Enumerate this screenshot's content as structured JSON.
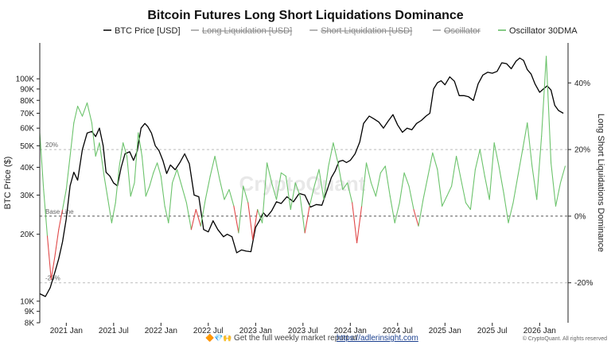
{
  "chart_data": {
    "type": "line",
    "title": "Bitcoin Futures Long Short Liquidations Dominance",
    "legend": [
      {
        "name": "BTC Price [USD]",
        "color": "#000000",
        "enabled": true
      },
      {
        "name": "Long Liquidation [USD]",
        "color": "#9a9a9a",
        "enabled": false
      },
      {
        "name": "Short Liquidation [USD]",
        "color": "#9a9a9a",
        "enabled": false
      },
      {
        "name": "Oscillator",
        "color": "#9a9a9a",
        "enabled": false
      },
      {
        "name": "Oscillator 30DMA",
        "color": "#5cb85c",
        "enabled": true
      }
    ],
    "ylabel_left": "BTC Price ($)",
    "ylabel_right": "Long Short Liquidations Dominance",
    "y_left_scale": "log",
    "y_left_range": [
      8000,
      145000
    ],
    "y_left_ticks": [
      {
        "value": 8000,
        "label": "8K"
      },
      {
        "value": 9000,
        "label": "9K"
      },
      {
        "value": 10000,
        "label": "10K"
      },
      {
        "value": 20000,
        "label": "20K"
      },
      {
        "value": 30000,
        "label": "30K"
      },
      {
        "value": 40000,
        "label": "40K"
      },
      {
        "value": 50000,
        "label": "50K"
      },
      {
        "value": 60000,
        "label": "60K"
      },
      {
        "value": 70000,
        "label": "70K"
      },
      {
        "value": 80000,
        "label": "80K"
      },
      {
        "value": 90000,
        "label": "90K"
      },
      {
        "value": 100000,
        "label": "100K"
      }
    ],
    "y_right_range": [
      -0.32,
      0.52
    ],
    "y_right_ticks": [
      {
        "value": 0.4,
        "label": "40%"
      },
      {
        "value": 0.2,
        "label": "20%"
      },
      {
        "value": 0.0,
        "label": "0%"
      },
      {
        "value": -0.2,
        "label": "-20%"
      }
    ],
    "x_range": [
      2020.72,
      2026.3
    ],
    "x_ticks": [
      {
        "value": 2021.0,
        "label": "2021 Jan"
      },
      {
        "value": 2021.5,
        "label": "2021 Jul"
      },
      {
        "value": 2022.0,
        "label": "2022 Jan"
      },
      {
        "value": 2022.5,
        "label": "2022 Jul"
      },
      {
        "value": 2023.0,
        "label": "2023 Jan"
      },
      {
        "value": 2023.5,
        "label": "2023 Jul"
      },
      {
        "value": 2024.0,
        "label": "2024 Jan"
      },
      {
        "value": 2024.5,
        "label": "2024 Jul"
      },
      {
        "value": 2025.0,
        "label": "2025 Jan"
      },
      {
        "value": 2025.5,
        "label": "2025 Jul"
      },
      {
        "value": 2026.0,
        "label": "2026 Jan"
      }
    ],
    "reference_lines": [
      {
        "value": 0.2,
        "label": "20%",
        "style": "dashed"
      },
      {
        "value": 0.0,
        "label": "Base Line",
        "style": "dashed"
      },
      {
        "value": -0.2,
        "label": "-20%",
        "style": "dashed"
      }
    ],
    "series": [
      {
        "name": "BTC Price [USD]",
        "axis": "left",
        "x": [
          2020.72,
          2020.78,
          2020.83,
          2020.88,
          2020.92,
          2020.96,
          2021.0,
          2021.04,
          2021.08,
          2021.12,
          2021.17,
          2021.22,
          2021.27,
          2021.31,
          2021.35,
          2021.39,
          2021.42,
          2021.46,
          2021.5,
          2021.54,
          2021.58,
          2021.62,
          2021.67,
          2021.71,
          2021.75,
          2021.79,
          2021.83,
          2021.86,
          2021.9,
          2021.94,
          2021.98,
          2022.02,
          2022.06,
          2022.1,
          2022.15,
          2022.2,
          2022.25,
          2022.3,
          2022.35,
          2022.4,
          2022.45,
          2022.5,
          2022.55,
          2022.6,
          2022.66,
          2022.7,
          2022.75,
          2022.8,
          2022.85,
          2022.9,
          2022.95,
          2023.0,
          2023.04,
          2023.08,
          2023.12,
          2023.17,
          2023.22,
          2023.27,
          2023.33,
          2023.4,
          2023.46,
          2023.52,
          2023.58,
          2023.64,
          2023.7,
          2023.76,
          2023.8,
          2023.84,
          2023.88,
          2023.92,
          2023.96,
          2024.0,
          2024.05,
          2024.1,
          2024.14,
          2024.2,
          2024.25,
          2024.3,
          2024.35,
          2024.4,
          2024.45,
          2024.5,
          2024.55,
          2024.6,
          2024.65,
          2024.7,
          2024.75,
          2024.8,
          2024.84,
          2024.88,
          2024.92,
          2024.96,
          2025.0,
          2025.05,
          2025.1,
          2025.15,
          2025.2,
          2025.25,
          2025.3,
          2025.35,
          2025.4,
          2025.45,
          2025.5,
          2025.55,
          2025.6,
          2025.65,
          2025.7,
          2025.75,
          2025.79,
          2025.83,
          2025.87,
          2025.91,
          2025.95,
          2026.0,
          2026.04,
          2026.08,
          2026.12,
          2026.16,
          2026.2,
          2026.25
        ],
        "y": [
          10800,
          10500,
          11500,
          13500,
          15500,
          18500,
          23500,
          33000,
          38000,
          35000,
          48000,
          57000,
          58000,
          55000,
          60000,
          50000,
          38000,
          36500,
          34000,
          33000,
          40000,
          46000,
          47000,
          43000,
          47500,
          60000,
          63000,
          61000,
          57000,
          50000,
          47500,
          43000,
          37500,
          41000,
          39000,
          42000,
          46000,
          41500,
          30000,
          29500,
          21000,
          20500,
          23000,
          21000,
          19500,
          20000,
          19500,
          16500,
          17000,
          16800,
          16700,
          21500,
          23000,
          25000,
          24000,
          25500,
          28000,
          27500,
          29500,
          28000,
          30500,
          30000,
          26500,
          27200,
          27000,
          32000,
          36000,
          38500,
          42500,
          43000,
          42000,
          43000,
          46000,
          52000,
          63000,
          68000,
          66000,
          64000,
          60000,
          64500,
          69000,
          62000,
          57500,
          60000,
          59000,
          63000,
          65000,
          68000,
          70000,
          90000,
          96000,
          98000,
          94000,
          102000,
          97500,
          84000,
          84000,
          83000,
          80000,
          95000,
          104000,
          107000,
          106000,
          108000,
          118000,
          117000,
          111000,
          120000,
          124000,
          121000,
          110000,
          105000,
          95000,
          87000,
          90000,
          93000,
          89000,
          76000,
          72000,
          70000
        ],
        "color": "#000000"
      },
      {
        "name": "Oscillator 30DMA",
        "axis": "right",
        "x": [
          2020.72,
          2020.76,
          2020.8,
          2020.84,
          2020.88,
          2020.92,
          2020.96,
          2021.0,
          2021.04,
          2021.08,
          2021.12,
          2021.17,
          2021.22,
          2021.27,
          2021.31,
          2021.35,
          2021.4,
          2021.44,
          2021.48,
          2021.52,
          2021.56,
          2021.6,
          2021.64,
          2021.68,
          2021.72,
          2021.76,
          2021.8,
          2021.84,
          2021.88,
          2021.92,
          2021.96,
          2022.0,
          2022.04,
          2022.08,
          2022.12,
          2022.17,
          2022.22,
          2022.27,
          2022.32,
          2022.37,
          2022.42,
          2022.47,
          2022.52,
          2022.57,
          2022.62,
          2022.67,
          2022.72,
          2022.77,
          2022.82,
          2022.87,
          2022.92,
          2022.97,
          2023.02,
          2023.07,
          2023.12,
          2023.17,
          2023.22,
          2023.27,
          2023.32,
          2023.37,
          2023.42,
          2023.47,
          2023.52,
          2023.57,
          2023.62,
          2023.67,
          2023.72,
          2023.77,
          2023.82,
          2023.87,
          2023.92,
          2023.97,
          2024.02,
          2024.07,
          2024.12,
          2024.17,
          2024.22,
          2024.27,
          2024.32,
          2024.37,
          2024.42,
          2024.47,
          2024.52,
          2024.57,
          2024.62,
          2024.67,
          2024.72,
          2024.77,
          2024.82,
          2024.87,
          2024.92,
          2024.97,
          2025.02,
          2025.07,
          2025.12,
          2025.17,
          2025.22,
          2025.27,
          2025.32,
          2025.37,
          2025.42,
          2025.47,
          2025.52,
          2025.57,
          2025.62,
          2025.67,
          2025.72,
          2025.77,
          2025.82,
          2025.87,
          2025.92,
          2025.97,
          2026.02,
          2026.07,
          2026.12,
          2026.17,
          2026.22,
          2026.27
        ],
        "y": [
          0.25,
          0.08,
          -0.06,
          -0.19,
          -0.12,
          -0.04,
          0.02,
          0.08,
          0.18,
          0.28,
          0.33,
          0.3,
          0.34,
          0.28,
          0.18,
          0.22,
          0.12,
          0.05,
          -0.02,
          0.04,
          0.15,
          0.22,
          0.18,
          0.06,
          0.1,
          0.25,
          0.18,
          0.06,
          0.09,
          0.13,
          0.16,
          0.12,
          0.03,
          -0.02,
          0.1,
          0.14,
          0.09,
          0.04,
          -0.04,
          0.02,
          -0.03,
          0.05,
          0.12,
          0.18,
          0.11,
          0.05,
          0.08,
          0.03,
          -0.05,
          0.09,
          0.04,
          -0.07,
          0.02,
          -0.02,
          0.16,
          0.1,
          0.05,
          0.13,
          0.12,
          0.02,
          0.1,
          0.06,
          -0.05,
          0.03,
          0.09,
          0.14,
          0.05,
          0.15,
          0.22,
          0.16,
          0.08,
          0.1,
          0.04,
          -0.08,
          0.03,
          0.16,
          0.1,
          0.06,
          0.13,
          0.15,
          0.06,
          -0.02,
          0.04,
          0.13,
          0.09,
          0.02,
          -0.03,
          0.05,
          0.12,
          0.19,
          0.14,
          0.03,
          0.06,
          0.09,
          0.18,
          0.11,
          0.04,
          0.02,
          0.14,
          0.2,
          0.12,
          0.05,
          0.22,
          0.15,
          0.07,
          -0.02,
          0.04,
          0.12,
          0.2,
          0.28,
          0.15,
          0.05,
          0.24,
          0.48,
          0.16,
          0.03,
          0.1,
          0.15
        ],
        "color_positive": "#6cc36c",
        "color_negative": "#e04848"
      }
    ]
  },
  "watermark": "CryptoQuant",
  "footer": {
    "icons": "🔶💎🙌",
    "text": "Get the full weekly market report at",
    "link": "https://adlerinsight.com",
    "copyright": "© CryptoQuant. All rights reserved"
  }
}
